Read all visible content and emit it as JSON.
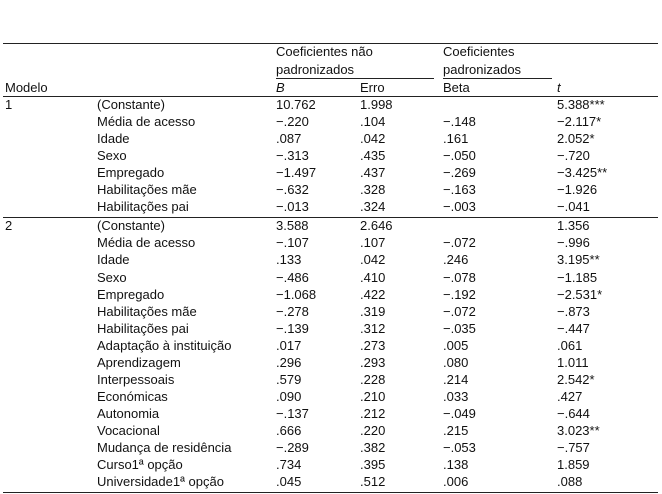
{
  "table": {
    "header": {
      "model": "Modelo",
      "group1": [
        "Coeficientes não",
        "padronizados"
      ],
      "group2": [
        "Coeficientes",
        "padronizados"
      ],
      "columns": [
        "B",
        "Erro",
        "Beta",
        "t"
      ]
    },
    "models": [
      {
        "label": "1",
        "rows": [
          [
            "(Constante)",
            "10.762",
            "1.998",
            null,
            "5.388***"
          ],
          [
            "Média de acesso",
            "−.220",
            ".104",
            "−.148",
            "−2.117*"
          ],
          [
            "Idade",
            ".087",
            ".042",
            ".161",
            "2.052*"
          ],
          [
            "Sexo",
            "−.313",
            ".435",
            "−.050",
            "−.720"
          ],
          [
            "Empregado",
            "−1.497",
            ".437",
            "−.269",
            "−3.425**"
          ],
          [
            "Habilitações mãe",
            "−.632",
            ".328",
            "−.163",
            "−1.926"
          ],
          [
            "Habilitações pai",
            "−.013",
            ".324",
            "−.003",
            "−.041"
          ]
        ]
      },
      {
        "label": "2",
        "rows": [
          [
            "(Constante)",
            "3.588",
            "2.646",
            null,
            "1.356"
          ],
          [
            "Média de acesso",
            "−.107",
            ".107",
            "−.072",
            "−.996"
          ],
          [
            "Idade",
            ".133",
            ".042",
            ".246",
            "3.195**"
          ],
          [
            "Sexo",
            "−.486",
            ".410",
            "−.078",
            "−1.185"
          ],
          [
            "Empregado",
            "−1.068",
            ".422",
            "−.192",
            "−2.531*"
          ],
          [
            "Habilitações mãe",
            "−.278",
            ".319",
            "−.072",
            "−.873"
          ],
          [
            "Habilitações pai",
            "−.139",
            ".312",
            "−.035",
            "−.447"
          ],
          [
            "Adaptação à instituição",
            ".017",
            ".273",
            ".005",
            ".061"
          ],
          [
            "Aprendizagem",
            ".296",
            ".293",
            ".080",
            "1.011"
          ],
          [
            "Interpessoais",
            ".579",
            ".228",
            ".214",
            "2.542*"
          ],
          [
            "Económicas",
            ".090",
            ".210",
            ".033",
            ".427"
          ],
          [
            "Autonomia",
            "−.137",
            ".212",
            "−.049",
            "−.644"
          ],
          [
            "Vocacional",
            ".666",
            ".220",
            ".215",
            "3.023**"
          ],
          [
            "Mudança de residência",
            "−.289",
            ".382",
            "−.053",
            "−.757"
          ],
          [
            "Curso1ª opção",
            ".734",
            ".395",
            ".138",
            "1.859"
          ],
          [
            "Universidade1ª opção",
            ".045",
            ".512",
            ".006",
            ".088"
          ]
        ]
      }
    ]
  }
}
